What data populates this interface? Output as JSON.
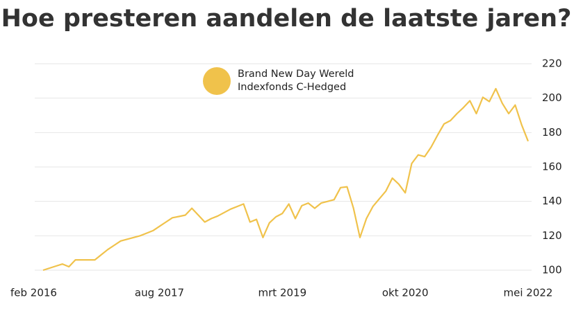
{
  "chart_data": {
    "type": "line",
    "title": "Hoe presteren aandelen de laatste jaren?",
    "categories": [
      "feb 2016",
      null,
      null,
      null,
      null,
      null,
      null,
      null,
      null,
      null,
      null,
      null,
      null,
      null,
      null,
      null,
      null,
      null,
      "aug 2017",
      null,
      null,
      null,
      null,
      null,
      null,
      null,
      null,
      null,
      null,
      null,
      null,
      null,
      null,
      null,
      null,
      null,
      null,
      "mrt 2019",
      null,
      null,
      null,
      null,
      null,
      null,
      null,
      null,
      null,
      null,
      null,
      null,
      null,
      null,
      null,
      null,
      null,
      null,
      "okt 2020",
      null,
      null,
      null,
      null,
      null,
      null,
      null,
      null,
      null,
      null,
      null,
      null,
      null,
      null,
      null,
      null,
      null,
      null,
      "mei 2022"
    ],
    "series": [
      {
        "name": "Brand New Day Wereld Indexfonds C-Hedged",
        "color": "#f0c24b",
        "values": [
          100,
          101.2,
          102.4,
          103.6,
          102,
          106,
          106,
          106,
          106,
          109,
          112,
          114.5,
          117,
          118,
          119,
          120,
          121.5,
          123,
          125.5,
          128,
          130.5,
          131.2,
          132,
          136,
          132,
          128,
          130,
          131.5,
          133.5,
          135.5,
          137,
          138.5,
          128,
          129.5,
          119,
          127.5,
          131,
          133,
          138.5,
          130,
          137.5,
          139,
          136,
          139,
          140,
          141,
          148,
          148.5,
          136,
          119,
          130,
          137,
          141.5,
          146,
          153.5,
          150,
          145,
          162,
          167,
          166,
          171.5,
          178.5,
          185,
          187,
          191,
          194.5,
          198.5,
          191,
          200.5,
          198,
          205.5,
          197,
          191,
          196,
          184.5,
          175
        ]
      }
    ],
    "ylim": [
      100,
      220
    ],
    "yticks": [
      100,
      120,
      140,
      160,
      180,
      200,
      220
    ],
    "grid": true
  }
}
